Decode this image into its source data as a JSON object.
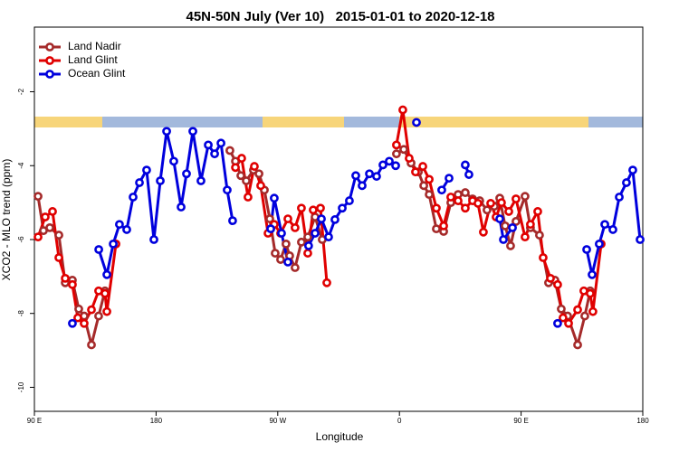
{
  "chart_data": {
    "type": "line",
    "title": "45N-50N July (Ver 10)   2015-01-01 to 2020-12-18",
    "xlabel": "Longitude",
    "ylabel": "XCO2 - MLO trend (ppm)",
    "xlim": [
      90,
      540
    ],
    "xticks": [
      {
        "value": 90,
        "label": "90 E"
      },
      180,
      {
        "value": 270,
        "label": "90 W"
      },
      {
        "value": 360,
        "label": "0"
      },
      {
        "value": 450,
        "label": "90 E"
      },
      {
        "value": 540,
        "label": "180"
      }
    ],
    "ylim": [
      -10.65,
      -0.25
    ],
    "yticks": [
      -2,
      -4,
      -6,
      -8,
      -10
    ],
    "legend": "upper left",
    "series": [
      {
        "name": "Land Nadir",
        "color": "#a52a2a",
        "x": [
          92.7,
          96.7,
          101.4,
          108.1,
          112.8,
          118.1,
          122.8,
          126.8,
          132.2,
          137.5,
          142.2,
          null,
          234.6,
          238.7,
          242.7,
          246.7,
          252.0,
          256.1,
          260.1,
          264.1,
          268.1,
          272.1,
          276.1,
          278.8,
          282.8,
          287.5,
          292.2,
          297.6,
          302.9,
          null,
          357.8,
          363.2,
          368.6,
          374.0,
          378.0,
          382.0,
          387.3,
          392.7,
          398.0,
          403.4,
          408.7,
          414.1,
          419.4,
          424.8,
          430.2,
          434.2,
          438.2,
          442.2,
          446.2,
          452.9,
          456.9,
          463.6,
          470.3,
          475.0,
          479.7,
          484.4,
          491.8,
          497.1,
          501.1
        ],
        "values": [
          -4.83,
          -5.76,
          -5.68,
          -5.88,
          -7.17,
          -7.1,
          -7.88,
          -8.07,
          -8.85,
          -8.07,
          -7.39,
          null,
          -3.59,
          -3.88,
          -4.27,
          -4.41,
          -4.12,
          -4.22,
          -4.66,
          -5.44,
          -6.37,
          -6.54,
          -6.12,
          -6.44,
          -6.76,
          -6.07,
          -5.93,
          -5.39,
          -6.0,
          null,
          -3.68,
          -3.56,
          -3.93,
          -4.17,
          -4.54,
          -4.78,
          -5.71,
          -5.78,
          -5.0,
          -4.78,
          -4.73,
          -4.9,
          -4.95,
          -5.2,
          -5.1,
          -4.88,
          -5.63,
          -6.17,
          -5.51,
          -4.83,
          -5.68,
          -5.88,
          -7.17,
          -7.1,
          -7.88,
          -8.07,
          -8.85,
          -8.07,
          -7.39
        ]
      },
      {
        "name": "Land Glint",
        "color": "#e00000",
        "x": [
          92.7,
          98.0,
          103.4,
          108.1,
          112.8,
          118.1,
          122.1,
          126.8,
          132.2,
          137.5,
          142.2,
          143.6,
          150.3,
          null,
          238.7,
          243.3,
          248.0,
          252.7,
          257.4,
          262.8,
          267.4,
          272.1,
          277.5,
          282.8,
          287.5,
          292.2,
          296.2,
          301.6,
          306.3,
          null,
          357.8,
          362.5,
          367.2,
          371.9,
          377.3,
          382.0,
          387.3,
          392.7,
          398.0,
          403.4,
          408.7,
          414.1,
          418.1,
          422.1,
          427.5,
          431.5,
          435.5,
          440.9,
          446.2,
          452.9,
          456.9,
          462.3,
          466.3,
          471.7,
          477.0,
          481.0,
          485.1,
          491.8,
          496.4,
          501.1,
          503.1,
          509.2
        ],
        "values": [
          -5.93,
          -5.39,
          -5.24,
          -6.49,
          -7.05,
          -7.22,
          -8.12,
          -8.27,
          -7.9,
          -7.39,
          -7.46,
          -7.95,
          -6.12,
          null,
          -4.05,
          -3.8,
          -4.85,
          -4.02,
          -4.54,
          -5.83,
          -5.59,
          -5.83,
          -5.44,
          -5.68,
          -5.15,
          -6.37,
          -5.2,
          -5.15,
          -7.17,
          null,
          -3.44,
          -2.49,
          -3.8,
          -4.17,
          -4.02,
          -4.37,
          -5.15,
          -5.63,
          -4.85,
          -4.95,
          -5.15,
          -4.95,
          -5.02,
          -5.8,
          -5.02,
          -5.39,
          -5.0,
          -5.24,
          -4.9,
          -5.93,
          -5.59,
          -5.24,
          -6.49,
          -7.05,
          -7.22,
          -8.12,
          -8.27,
          -7.9,
          -7.39,
          -7.46,
          -7.95,
          -6.12
        ]
      },
      {
        "name": "Ocean Glint",
        "color": "#0000dd",
        "x": [
          118.1,
          null,
          137.6,
          143.6,
          148.3,
          152.9,
          158.3,
          163.0,
          167.7,
          173.0,
          178.4,
          183.1,
          187.8,
          193.1,
          198.5,
          202.5,
          207.2,
          213.2,
          218.6,
          223.3,
          228.0,
          232.6,
          236.6,
          null,
          264.8,
          267.4,
          272.8,
          277.5,
          null,
          292.8,
          297.6,
          302.3,
          307.6,
          312.3,
          317.7,
          323.0,
          327.7,
          332.4,
          337.8,
          343.1,
          347.8,
          352.5,
          357.2,
          null,
          372.6,
          null,
          391.3,
          396.7,
          null,
          408.7,
          411.4,
          null,
          434.2,
          436.9,
          443.6,
          null,
          477.0,
          null,
          498.5,
          502.5,
          507.8,
          511.9,
          517.9,
          522.6,
          527.9,
          532.6,
          538.0
        ],
        "values": [
          -8.27,
          null,
          -6.27,
          -6.95,
          -6.12,
          -5.59,
          -5.73,
          -4.85,
          -4.46,
          -4.12,
          -6.0,
          -4.41,
          -3.07,
          -3.88,
          -5.12,
          -4.22,
          -3.07,
          -4.41,
          -3.44,
          -3.68,
          -3.39,
          -4.66,
          -5.49,
          null,
          -5.71,
          -4.88,
          -5.83,
          -6.61,
          null,
          -6.17,
          -5.83,
          -5.44,
          -5.93,
          -5.46,
          -5.15,
          -4.95,
          -4.27,
          -4.54,
          -4.22,
          -4.29,
          -3.98,
          -3.88,
          -4.0,
          null,
          -2.83,
          null,
          -4.66,
          -4.34,
          null,
          -3.98,
          -4.24,
          null,
          -5.44,
          -6.0,
          -5.68,
          null,
          -8.27,
          null,
          -6.27,
          -6.95,
          -6.12,
          -5.59,
          -5.73,
          -4.85,
          -4.46,
          -4.12,
          -6.0
        ]
      }
    ]
  }
}
